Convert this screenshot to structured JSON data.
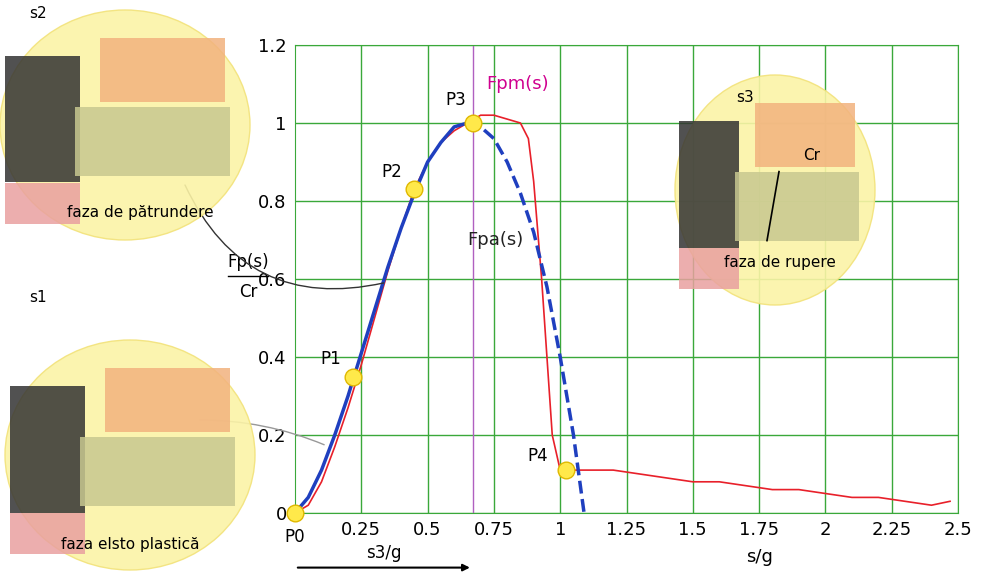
{
  "chart_data": {
    "type": "line",
    "x_label": "s/g",
    "y_label": {
      "numerator": "Fp(s)",
      "denominator": "Cr"
    },
    "xlim": [
      0,
      2.5
    ],
    "xticks": [
      0.25,
      0.5,
      0.75,
      1,
      1.25,
      1.5,
      1.75,
      2,
      2.25,
      2.5
    ],
    "ylim": [
      0,
      1.2
    ],
    "yticks": [
      0,
      0.2,
      0.4,
      0.6,
      0.8,
      1,
      1.2
    ],
    "grid": true,
    "series": [
      {
        "name": "Fpm(s)",
        "color": "#e8202a",
        "line_style": "solid",
        "x": [
          0,
          0.05,
          0.1,
          0.15,
          0.2,
          0.25,
          0.3,
          0.35,
          0.4,
          0.45,
          0.5,
          0.55,
          0.6,
          0.65,
          0.7,
          0.75,
          0.8,
          0.85,
          0.88,
          0.9,
          0.93,
          0.95,
          0.97,
          1.0,
          1.1,
          1.2,
          1.3,
          1.4,
          1.5,
          1.6,
          1.7,
          1.8,
          1.9,
          2.0,
          2.1,
          2.2,
          2.3,
          2.4,
          2.47
        ],
        "values": [
          0,
          0.02,
          0.08,
          0.17,
          0.27,
          0.38,
          0.5,
          0.62,
          0.73,
          0.83,
          0.9,
          0.95,
          0.98,
          1.0,
          1.02,
          1.02,
          1.01,
          1.0,
          0.96,
          0.85,
          0.6,
          0.4,
          0.2,
          0.11,
          0.11,
          0.11,
          0.1,
          0.09,
          0.08,
          0.08,
          0.07,
          0.06,
          0.06,
          0.05,
          0.04,
          0.04,
          0.03,
          0.02,
          0.03
        ]
      },
      {
        "color": "#1f3fbf",
        "line_style": "solid",
        "x": [
          0,
          0.05,
          0.1,
          0.15,
          0.2,
          0.25,
          0.3,
          0.35,
          0.4,
          0.45,
          0.5,
          0.55,
          0.6,
          0.65
        ],
        "values": [
          0,
          0.04,
          0.11,
          0.2,
          0.3,
          0.41,
          0.52,
          0.63,
          0.73,
          0.82,
          0.9,
          0.95,
          0.99,
          1.0
        ]
      },
      {
        "name": "Fpa(s)",
        "color": "#1f3fbf",
        "line_style": "dashed",
        "x": [
          0.65,
          0.7,
          0.75,
          0.8,
          0.85,
          0.9,
          0.95,
          1.0,
          1.05,
          1.09
        ],
        "values": [
          1.0,
          0.99,
          0.96,
          0.9,
          0.82,
          0.72,
          0.58,
          0.4,
          0.2,
          0.0
        ]
      }
    ],
    "points": [
      {
        "label": "P0",
        "x": 0,
        "y": 0
      },
      {
        "label": "P1",
        "x": 0.22,
        "y": 0.35
      },
      {
        "label": "P2",
        "x": 0.45,
        "y": 0.83
      },
      {
        "label": "P3",
        "x": 0.67,
        "y": 1.0
      },
      {
        "label": "P4",
        "x": 1.02,
        "y": 0.11
      }
    ],
    "s3_line": {
      "x": 0.67,
      "label": "s3/g"
    },
    "insets": [
      {
        "label": "faza de pătrundere",
        "gap_label": "s2"
      },
      {
        "label": "faza elsto plastică",
        "gap_label": "s1"
      },
      {
        "label": "faza de rupere",
        "gap_label": "s3",
        "crack_label": "Cr"
      }
    ]
  }
}
